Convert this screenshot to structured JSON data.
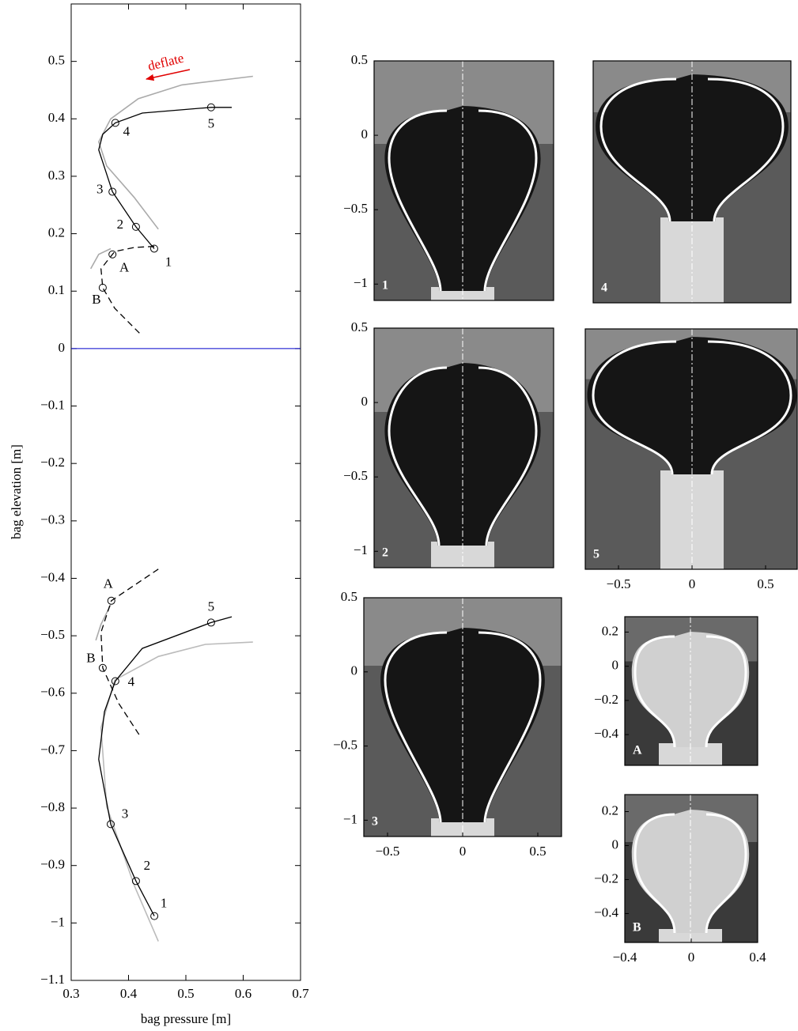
{
  "chart_data": [
    {
      "type": "line",
      "xlabel": "bag pressure [m]",
      "ylabel": "bag elevation [m]",
      "annotation": "deflate",
      "xlim": [
        0.3,
        0.7
      ],
      "xticks": [
        0.3,
        0.4,
        0.5,
        0.6,
        0.7
      ],
      "ylim": [
        -1.1,
        0.6
      ],
      "yticks": [
        {
          "value": -1.1,
          "label": "−1.1"
        },
        {
          "value": -1,
          "label": "−1"
        },
        {
          "value": -0.9,
          "label": "−0.9"
        },
        {
          "value": -0.8,
          "label": "−0.8"
        },
        {
          "value": -0.7,
          "label": "−0.7"
        },
        {
          "value": -0.6,
          "label": "−0.6"
        },
        {
          "value": -0.5,
          "label": "−0.5"
        },
        {
          "value": -0.4,
          "label": "−0.4"
        },
        {
          "value": -0.3,
          "label": "−0.3"
        },
        {
          "value": -0.2,
          "label": "−0.2"
        },
        {
          "value": -0.1,
          "label": "−0.1"
        },
        0,
        0.1,
        0.2,
        0.3,
        0.4,
        0.5
      ],
      "series": [
        {
          "color": "#aaaaaa",
          "style": "solid",
          "x": [
            0.452,
            0.41,
            0.362,
            0.348,
            0.369,
            0.417,
            0.493,
            0.617
          ],
          "y": [
            0.208,
            0.263,
            0.318,
            0.36,
            0.4,
            0.435,
            0.459,
            0.474
          ]
        },
        {
          "color": "#aaaaaa",
          "style": "solid",
          "x": [
            0.369,
            0.348,
            0.334
          ],
          "y": [
            0.174,
            0.164,
            0.139
          ]
        },
        {
          "color": "#000000",
          "style": "solid",
          "x": [
            0.4448,
            0.413,
            0.372,
            0.348,
            0.355,
            0.377,
            0.424,
            0.544,
            0.58
          ],
          "y": [
            0.174,
            0.212,
            0.273,
            0.346,
            0.373,
            0.393,
            0.41,
            0.42,
            0.42
          ]
        },
        {
          "color": "#000000",
          "style": "dashed",
          "x": [
            0.445,
            0.41,
            0.376,
            0.372,
            0.352,
            0.355,
            0.376,
            0.421
          ],
          "y": [
            0.178,
            0.176,
            0.169,
            0.164,
            0.139,
            0.106,
            0.07,
            0.025
          ]
        },
        {
          "color": "#bbbbbb",
          "style": "solid",
          "x": [
            0.452,
            0.41,
            0.362,
            0.352,
            0.376,
            0.452,
            0.534,
            0.617
          ],
          "y": [
            -1.032,
            -0.935,
            -0.797,
            -0.66,
            -0.577,
            -0.536,
            -0.515,
            -0.511
          ]
        },
        {
          "color": "#aaaaaa",
          "style": "solid",
          "x": [
            0.369,
            0.352,
            0.343
          ],
          "y": [
            -0.446,
            -0.48,
            -0.508
          ]
        },
        {
          "color": "#000000",
          "style": "solid",
          "x": [
            0.445,
            0.413,
            0.369,
            0.348,
            0.358,
            0.377,
            0.424,
            0.544,
            0.58
          ],
          "y": [
            -0.988,
            -0.927,
            -0.828,
            -0.715,
            -0.632,
            -0.579,
            -0.522,
            -0.477,
            -0.467
          ]
        },
        {
          "color": "#000000",
          "style": "dashed",
          "x": [
            0.452,
            0.37,
            0.352,
            0.355,
            0.383,
            0.421
          ],
          "y": [
            -0.384,
            -0.439,
            -0.494,
            -0.556,
            -0.618,
            -0.676
          ]
        }
      ],
      "points": [
        {
          "label": "1",
          "x": 0.4448,
          "y": 0.174
        },
        {
          "label": "2",
          "x": 0.413,
          "y": 0.212
        },
        {
          "label": "3",
          "x": 0.372,
          "y": 0.273
        },
        {
          "label": "4",
          "x": 0.377,
          "y": 0.393
        },
        {
          "label": "5",
          "x": 0.544,
          "y": 0.42
        },
        {
          "label": "A",
          "x": 0.372,
          "y": 0.164
        },
        {
          "label": "B",
          "x": 0.355,
          "y": 0.106
        },
        {
          "label": "1",
          "x": 0.445,
          "y": -0.988
        },
        {
          "label": "2",
          "x": 0.413,
          "y": -0.927
        },
        {
          "label": "3",
          "x": 0.369,
          "y": -0.828
        },
        {
          "label": "4",
          "x": 0.377,
          "y": -0.579
        },
        {
          "label": "5",
          "x": 0.544,
          "y": -0.477
        },
        {
          "label": "A",
          "x": 0.37,
          "y": -0.439
        },
        {
          "label": "B",
          "x": 0.355,
          "y": -0.556
        }
      ]
    },
    {
      "type": "image",
      "label": "1",
      "xlim": [
        -0.59,
        0.6
      ],
      "ylim": [
        -1.11,
        0.5
      ],
      "yticks": [
        0.5,
        0,
        {
          "value": -0.5,
          "label": "−0.5"
        },
        {
          "value": -1,
          "label": "−1"
        }
      ]
    },
    {
      "type": "image",
      "label": "2",
      "xlim": [
        -0.59,
        0.6
      ],
      "ylim": [
        -1.11,
        0.5
      ],
      "yticks": [
        0.5,
        0,
        {
          "value": -0.5,
          "label": "−0.5"
        },
        {
          "value": -1,
          "label": "−1"
        }
      ]
    },
    {
      "type": "image",
      "label": "3",
      "xlim": [
        -0.658,
        0.658
      ],
      "ylim": [
        -1.11,
        0.5
      ],
      "xticks": [
        {
          "value": -0.5,
          "label": "−0.5"
        },
        0,
        0.5
      ],
      "yticks": [
        0.5,
        0,
        {
          "value": -0.5,
          "label": "−0.5"
        },
        {
          "value": -1,
          "label": "−1"
        }
      ]
    },
    {
      "type": "image",
      "label": "4",
      "xlim": [
        -0.658,
        0.658
      ],
      "ylim": [
        -1.13,
        0.5
      ]
    },
    {
      "type": "image",
      "label": "5",
      "xlim": [
        -0.726,
        0.715
      ],
      "ylim": [
        -1.11,
        0.5
      ],
      "xticks": [
        {
          "value": -0.5,
          "label": "−0.5"
        },
        0,
        0.5
      ]
    },
    {
      "type": "image",
      "label": "A",
      "xlim": [
        -0.4,
        0.4
      ],
      "ylim": [
        -0.58,
        0.29
      ],
      "yticks": [
        0.2,
        0,
        {
          "value": -0.2,
          "label": "−0.2"
        },
        {
          "value": -0.4,
          "label": "−0.4"
        }
      ]
    },
    {
      "type": "image",
      "label": "B",
      "xlim": [
        -0.4,
        0.4
      ],
      "ylim": [
        -0.57,
        0.3
      ],
      "xticks": [
        {
          "value": -0.4,
          "label": "−0.4"
        },
        0,
        0.4
      ],
      "yticks": [
        0.2,
        0,
        {
          "value": -0.2,
          "label": "−0.2"
        },
        {
          "value": -0.4,
          "label": "−0.4"
        }
      ]
    }
  ]
}
